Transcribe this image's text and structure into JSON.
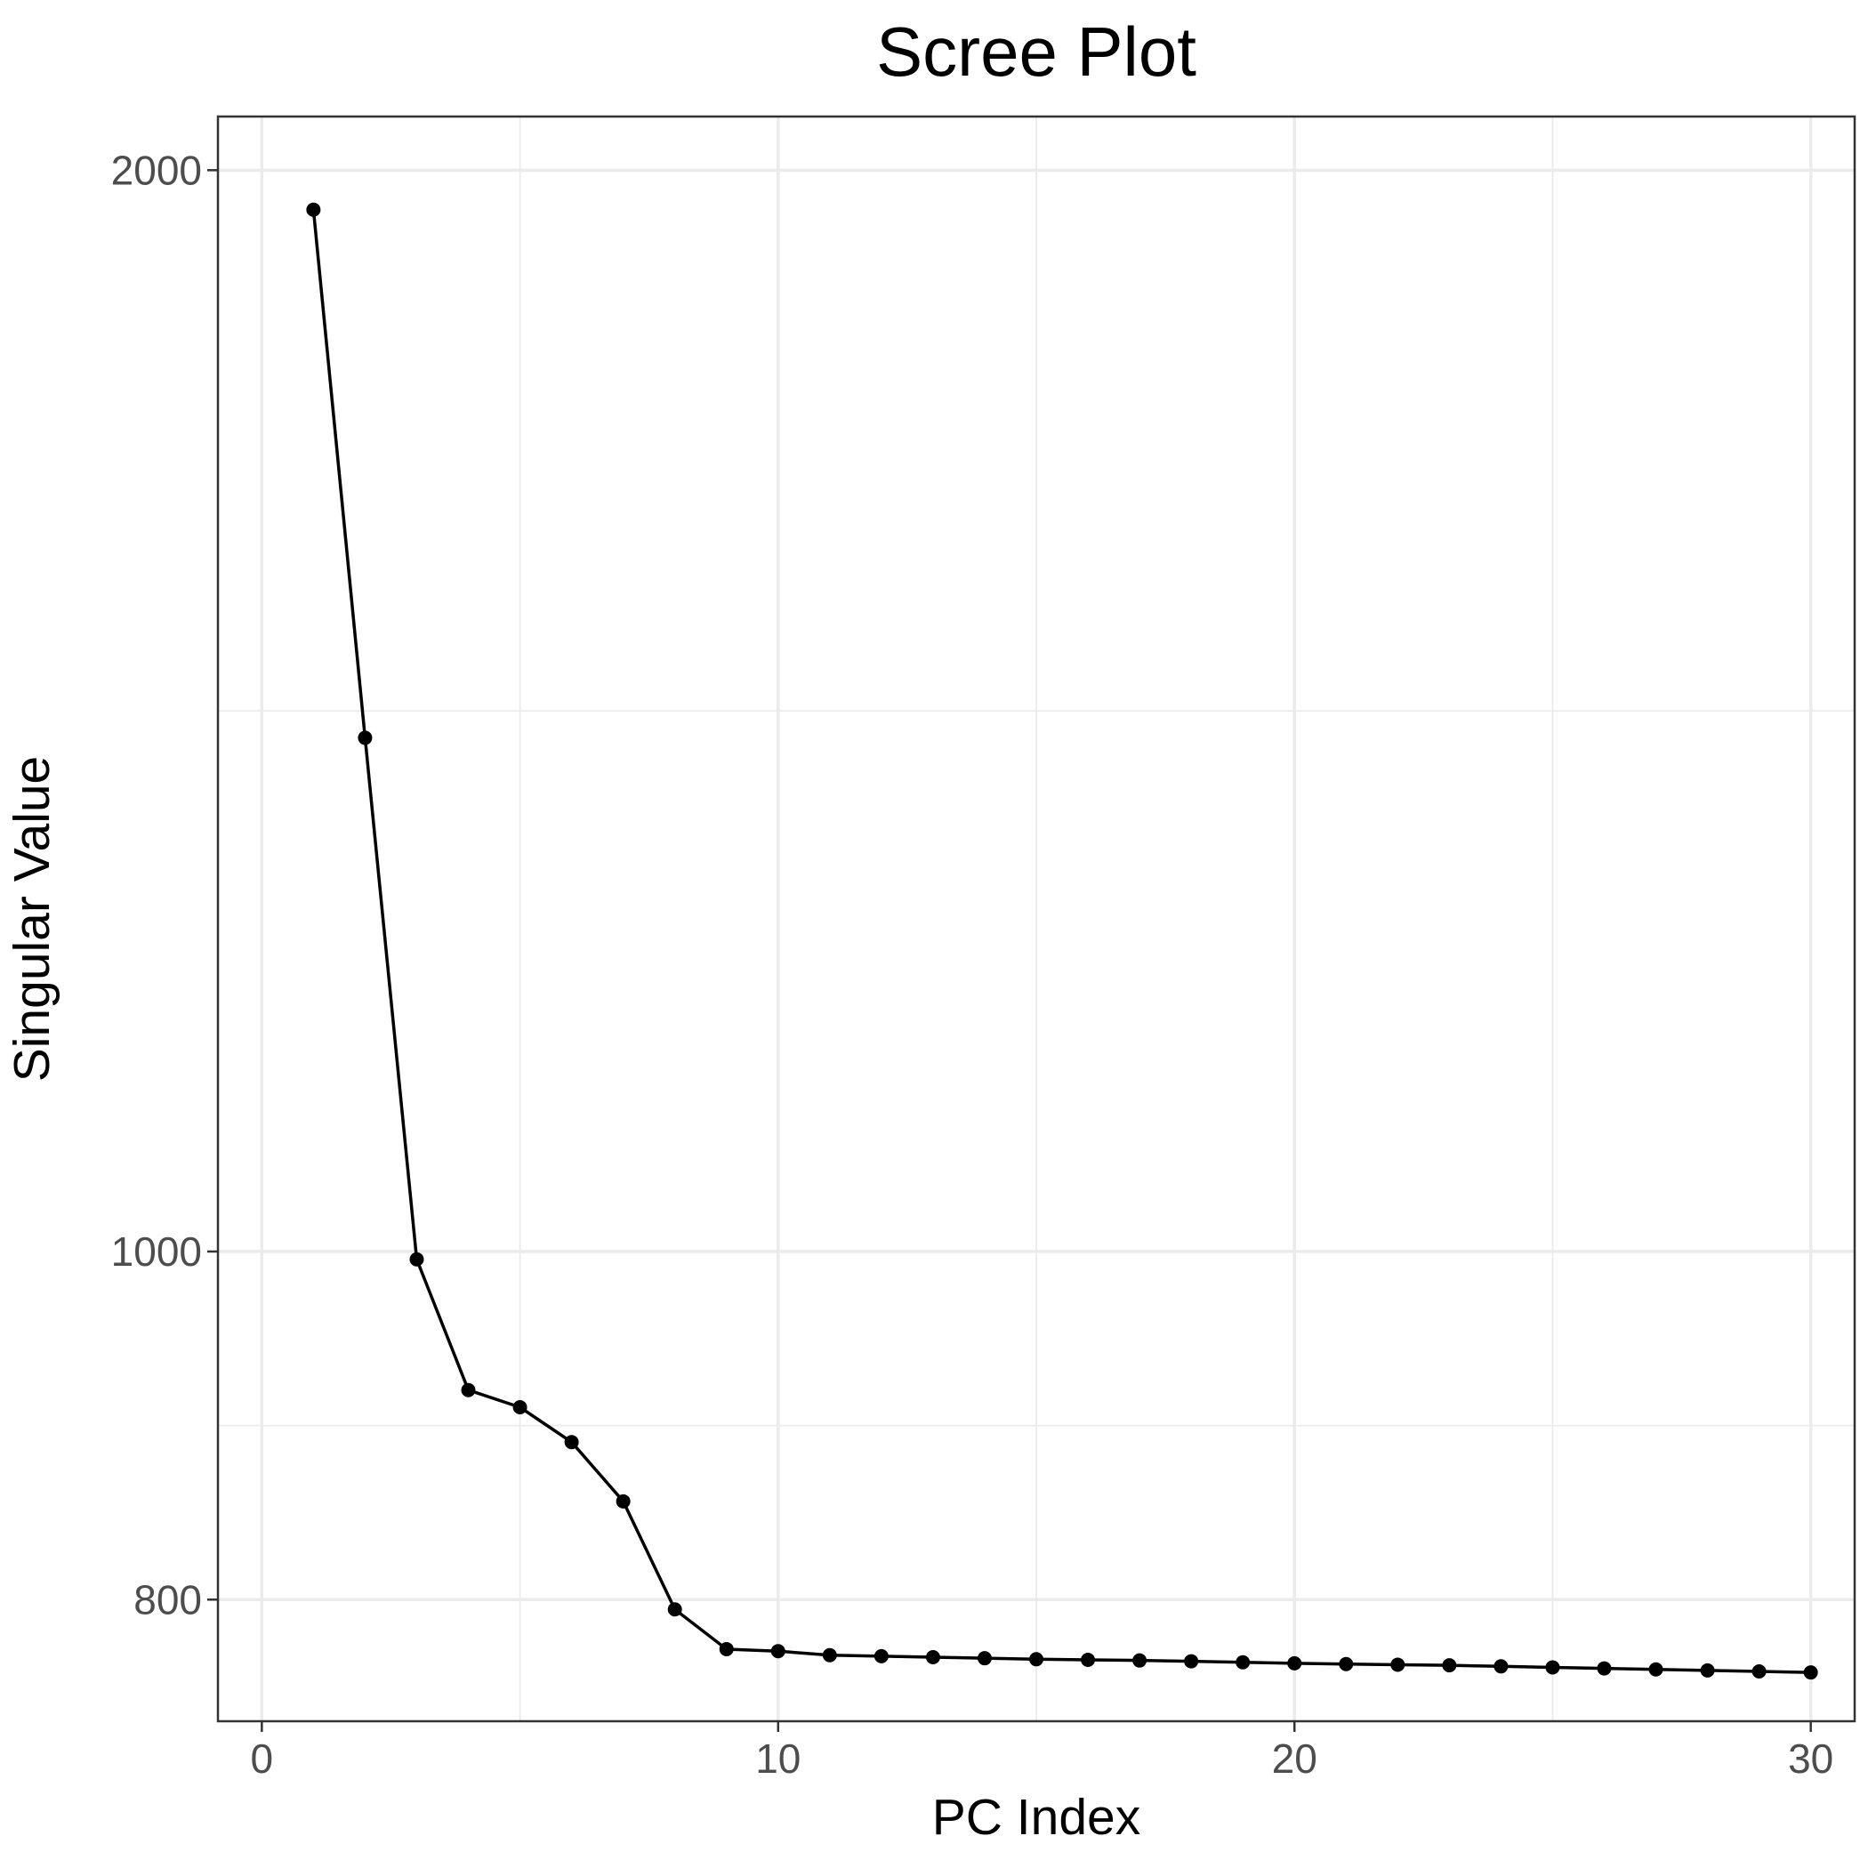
{
  "chart_data": {
    "type": "line",
    "title": "Scree Plot",
    "xlabel": "PC Index",
    "ylabel": "Singular Value",
    "y_scale": "log",
    "xlim": [
      -0.85,
      30.85
    ],
    "ylim": [
      740,
      2070
    ],
    "x_ticks": [
      0,
      10,
      20,
      30
    ],
    "x_tick_labels": [
      "0",
      "10",
      "20",
      "30"
    ],
    "x_minor_ticks": [
      5,
      15,
      25
    ],
    "y_ticks": [
      800,
      1000,
      2000
    ],
    "y_tick_labels": [
      "800",
      "1000",
      "2000"
    ],
    "y_minor_ticks": [
      894.4,
      1414.2
    ],
    "grid": true,
    "legend": "none",
    "series": [
      {
        "x": [
          1,
          2,
          3,
          4,
          5,
          6,
          7,
          8,
          9,
          10,
          11,
          12,
          13,
          14,
          15,
          16,
          17,
          18,
          19,
          20,
          21,
          22,
          23,
          24,
          25,
          26,
          27,
          28,
          29,
          30
        ],
        "values": [
          1950,
          1390,
          995,
          915,
          905,
          885,
          852,
          795,
          775,
          774,
          772,
          771.5,
          771,
          770.5,
          770,
          769.7,
          769.4,
          769,
          768.5,
          768,
          767.6,
          767.3,
          767,
          766.5,
          766,
          765.5,
          765,
          764.5,
          764,
          763.5
        ]
      }
    ],
    "colors": {
      "series": "#000000",
      "grid": "#ebebeb",
      "tick_text": "#4d4d4d",
      "border": "#333333"
    }
  }
}
